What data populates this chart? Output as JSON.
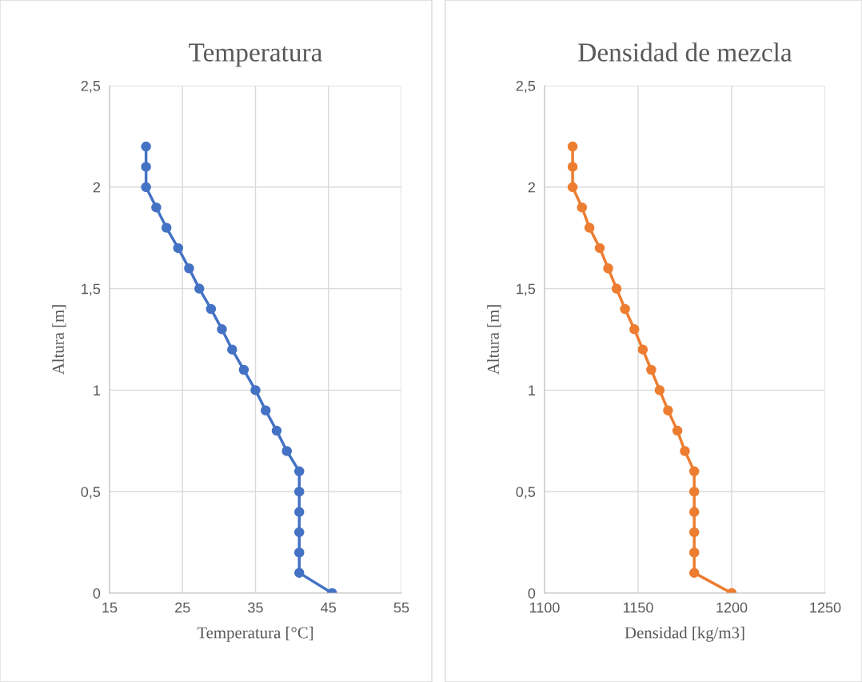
{
  "chart_data": [
    {
      "type": "line",
      "title": "Temperatura",
      "xlabel": "Temperatura [°C]",
      "ylabel": "Altura [m]",
      "series": [
        {
          "color": "#4472c4",
          "x": [
            45.5,
            41,
            41,
            41,
            41,
            41,
            41,
            39.3,
            37.9,
            36.4,
            35,
            33.4,
            31.8,
            30.4,
            28.9,
            27.3,
            25.9,
            24.4,
            22.8,
            21.4,
            20,
            20,
            20
          ],
          "values": [
            0,
            0.1,
            0.2,
            0.3,
            0.4,
            0.5,
            0.6,
            0.7,
            0.8,
            0.9,
            1.0,
            1.1,
            1.2,
            1.3,
            1.4,
            1.5,
            1.6,
            1.7,
            1.8,
            1.9,
            2.0,
            2.1,
            2.2
          ]
        }
      ],
      "xlim": [
        15,
        55
      ],
      "xticks": [
        15,
        25,
        35,
        45,
        55
      ],
      "ylim": [
        0,
        2.5
      ],
      "yticks": [
        0,
        {
          "value": 0.5,
          "label": "0,5"
        },
        1,
        {
          "value": 1.5,
          "label": "1,5"
        },
        2,
        {
          "value": 2.5,
          "label": "2,5"
        }
      ],
      "grid": true,
      "marker": "circle",
      "line_style": "solid"
    },
    {
      "type": "line",
      "title": "Densidad de mezcla",
      "xlabel": "Densidad [kg/m3]",
      "ylabel": "Altura [m]",
      "series": [
        {
          "color": "#ed7d31",
          "x": [
            1200,
            1180,
            1180,
            1180,
            1180,
            1180,
            1180,
            1175,
            1171,
            1166,
            1161.5,
            1157,
            1152.5,
            1148,
            1143,
            1138.5,
            1134,
            1129.5,
            1124,
            1120,
            1115,
            1115,
            1115
          ],
          "values": [
            0,
            0.1,
            0.2,
            0.3,
            0.4,
            0.5,
            0.6,
            0.7,
            0.8,
            0.9,
            1.0,
            1.1,
            1.2,
            1.3,
            1.4,
            1.5,
            1.6,
            1.7,
            1.8,
            1.9,
            2.0,
            2.1,
            2.2
          ]
        }
      ],
      "xlim": [
        1100,
        1250
      ],
      "xticks": [
        1100,
        1150,
        1200,
        1250
      ],
      "ylim": [
        0,
        2.5
      ],
      "yticks": [
        0,
        {
          "value": 0.5,
          "label": "0,5"
        },
        1,
        {
          "value": 1.5,
          "label": "1,5"
        },
        2,
        {
          "value": 2.5,
          "label": "2,5"
        }
      ],
      "grid": true,
      "marker": "circle",
      "line_style": "solid"
    }
  ]
}
